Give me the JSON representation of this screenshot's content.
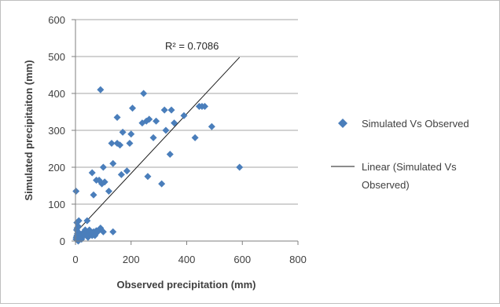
{
  "chart_data": {
    "type": "scatter",
    "title": "",
    "xlabel": "Observed precipitation (mm)",
    "ylabel": "Simulated precipitaiton (mm)",
    "xlim": [
      0,
      800
    ],
    "ylim": [
      0,
      600
    ],
    "x_ticks": [
      "0",
      "200",
      "400",
      "600",
      "800"
    ],
    "y_ticks": [
      "0",
      "100",
      "200",
      "300",
      "400",
      "500",
      "600"
    ],
    "grid": "horizontal major gridlines",
    "legend_position": "right",
    "marker_color": "#4a7ebb",
    "line_color": "#1a1a1a",
    "series": [
      {
        "name": "Simulated Vs Observed",
        "marker": "diamond",
        "x": [
          2,
          3,
          5,
          7,
          9,
          4,
          6,
          10,
          12,
          15,
          18,
          20,
          22,
          25,
          28,
          30,
          35,
          40,
          45,
          50,
          55,
          60,
          65,
          70,
          75,
          80,
          90,
          100,
          2,
          5,
          8,
          12,
          20,
          30,
          42,
          10,
          60,
          55,
          65,
          75,
          85,
          95,
          100,
          105,
          120,
          130,
          135,
          150,
          160,
          165,
          170,
          185,
          195,
          200,
          205,
          240,
          245,
          255,
          265,
          280,
          290,
          310,
          320,
          325,
          345,
          355,
          390,
          430,
          445,
          455,
          465,
          490,
          590,
          340,
          260,
          150,
          135,
          90,
          70
        ],
        "y": [
          5,
          10,
          15,
          20,
          25,
          30,
          35,
          40,
          55,
          8,
          12,
          18,
          5,
          20,
          22,
          15,
          30,
          25,
          10,
          30,
          20,
          15,
          25,
          20,
          28,
          25,
          35,
          25,
          135,
          50,
          12,
          8,
          14,
          18,
          55,
          0,
          185,
          20,
          125,
          165,
          165,
          155,
          200,
          160,
          135,
          265,
          210,
          335,
          260,
          180,
          295,
          190,
          265,
          290,
          360,
          320,
          400,
          325,
          330,
          280,
          325,
          155,
          355,
          300,
          355,
          320,
          340,
          280,
          365,
          365,
          365,
          310,
          200,
          235,
          175,
          265,
          25,
          410,
          15
        ]
      },
      {
        "name": "Linear (Simulated Vs Observed)",
        "type": "trendline",
        "x": [
          0,
          590
        ],
        "y": [
          22,
          498
        ]
      }
    ],
    "annotations": [
      "R² = 0.7086"
    ]
  }
}
